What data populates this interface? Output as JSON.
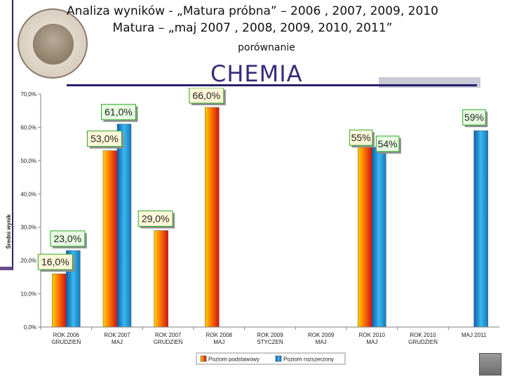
{
  "header": {
    "title_line1": "Analiza wyników  - „Matura próbna” – 2006 , 2007, 2009, 2010",
    "title_line2": "Matura – „maj 2007 , 2008, 2009, 2010, 2011”",
    "subtitle": "porównanie",
    "subject": "CHEMIA"
  },
  "chart_data": {
    "type": "bar",
    "ylabel": "Średni wynik",
    "ylim": [
      0,
      70
    ],
    "yticks": [
      "0,0%",
      "10,0%",
      "20,0%",
      "30,0%",
      "40,0%",
      "50,0%",
      "60,0%",
      "70,0%"
    ],
    "grid": false,
    "legend_position": "bottom",
    "categories": [
      [
        "ROK 2006",
        "GRUDZIEŃ"
      ],
      [
        "ROK 2007",
        "MAJ"
      ],
      [
        "ROK 2007",
        "GRUDZIEŃ"
      ],
      [
        "ROK 2008",
        "MAJ"
      ],
      [
        "ROK 2009",
        "STYCZEŃ"
      ],
      [
        "ROK 2009",
        "MAJ"
      ],
      [
        "ROK 2010",
        "MAJ"
      ],
      [
        "ROK 2010",
        "GRUDZIEŃ"
      ],
      [
        "MAJ 2011",
        ""
      ]
    ],
    "series": [
      {
        "name": "Poziom podstawowy",
        "color": "#e8501e",
        "values": [
          16,
          53,
          29,
          66,
          null,
          null,
          55,
          null,
          null
        ],
        "labels": [
          "16,0%",
          "53,0%",
          "29,0%",
          "66,0%",
          null,
          null,
          "55%",
          null,
          null
        ]
      },
      {
        "name": "Poziom rozszerzony",
        "color": "#2aa0d8",
        "values": [
          23,
          61,
          null,
          null,
          null,
          null,
          54,
          null,
          59
        ],
        "labels": [
          "23,0%",
          "61,0%",
          null,
          null,
          null,
          null,
          "54%",
          null,
          "59%"
        ]
      }
    ]
  }
}
